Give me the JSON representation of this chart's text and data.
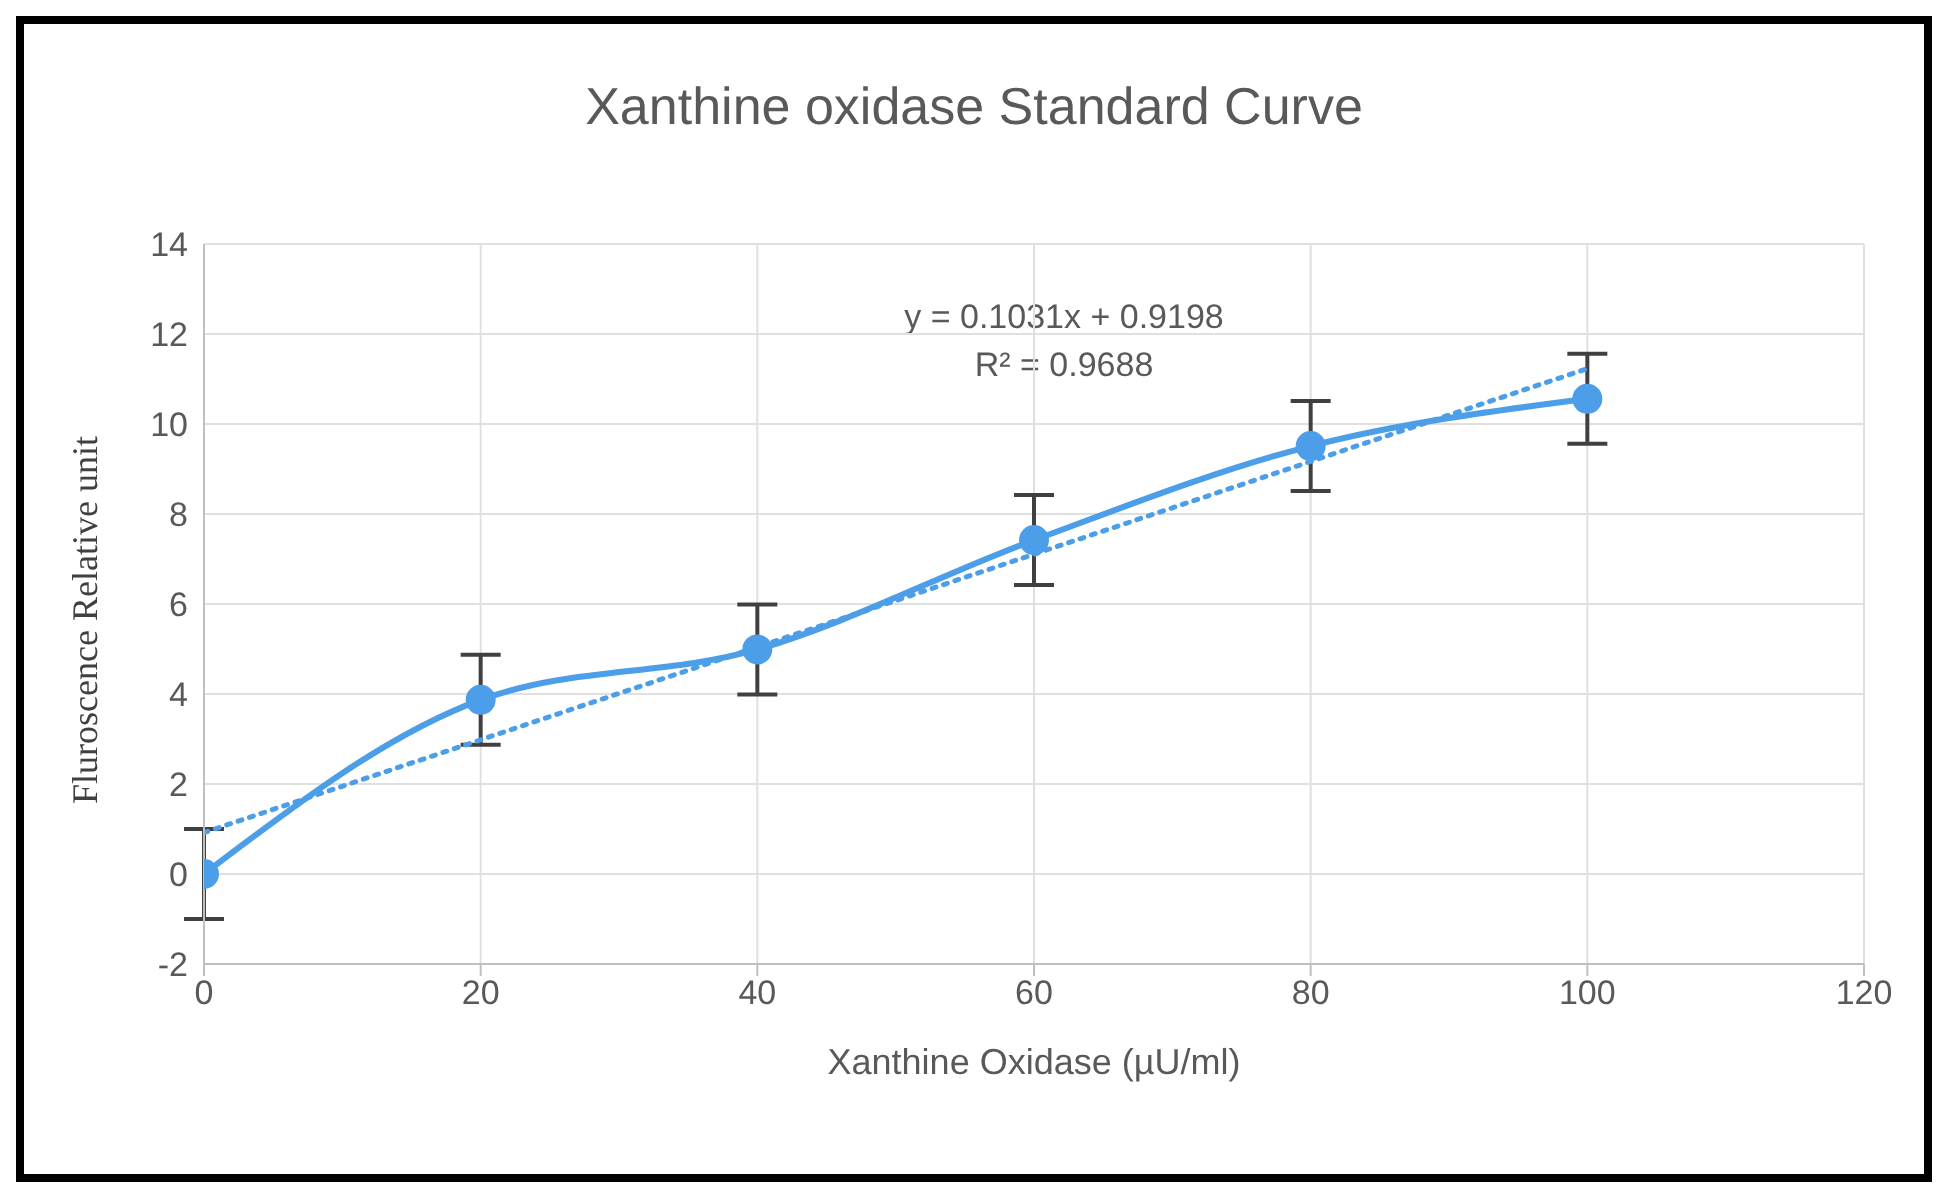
{
  "chart_data": {
    "type": "line",
    "title": "Xanthine oxidase Standard Curve",
    "xlabel": "Xanthine Oxidase (µU/ml)",
    "ylabel": "Fluroscence Relative unit",
    "annotations": [
      "y = 0.1031x + 0.9198",
      "R² = 0.9688"
    ],
    "xlim": [
      0,
      120
    ],
    "xticks": [
      0,
      20,
      40,
      60,
      80,
      100,
      120
    ],
    "ylim": [
      -2,
      14
    ],
    "yticks": [
      -2,
      0,
      2,
      4,
      6,
      8,
      10,
      12,
      14
    ],
    "grid": true,
    "series": [
      {
        "color": "#4c9ee8",
        "x": [
          0,
          20,
          40,
          60,
          80,
          100
        ],
        "values": [
          0,
          3.87,
          4.99,
          7.42,
          9.51,
          10.56
        ],
        "errors": [
          1,
          1,
          1,
          1,
          1,
          1
        ],
        "marker": "circle",
        "line_style": "solid"
      },
      {
        "color": "#4c9ee8",
        "x": [
          0,
          100
        ],
        "values": [
          0.92,
          11.23
        ],
        "marker": "none",
        "line_style": "dotted"
      }
    ]
  }
}
